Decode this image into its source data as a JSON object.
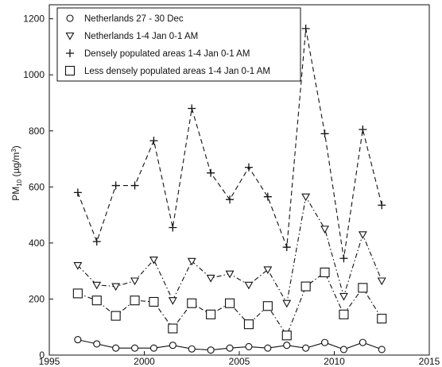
{
  "chart_data": {
    "type": "line",
    "xlabel": "",
    "ylabel": {
      "main": "PM",
      "sub": "10",
      "unit_pre": " (µg/m",
      "unit_sup": "3",
      "unit_post": ")"
    },
    "xlim": [
      1995,
      2015
    ],
    "ylim": [
      0,
      1250
    ],
    "xticks": [
      1995,
      2000,
      2005,
      2010,
      2015
    ],
    "yticks": [
      0,
      200,
      400,
      600,
      800,
      1000,
      1200
    ],
    "grid": false,
    "legend_position": "top-left",
    "series": [
      {
        "name": "Netherlands 27 - 30 Dec",
        "marker": "circle",
        "line_style": "solid",
        "x": [
          1996.5,
          1997.5,
          1998.5,
          1999.5,
          2000.5,
          2001.5,
          2002.5,
          2003.5,
          2004.5,
          2005.5,
          2006.5,
          2007.5,
          2008.5,
          2009.5,
          2010.5,
          2011.5,
          2012.5
        ],
        "y": [
          55,
          40,
          25,
          25,
          25,
          35,
          22,
          18,
          25,
          30,
          25,
          35,
          25,
          45,
          20,
          45,
          20
        ]
      },
      {
        "name": "Netherlands 1-4 Jan 0-1 AM",
        "marker": "triangle-down",
        "line_style": "dash-dot",
        "x": [
          1996.5,
          1997.5,
          1998.5,
          1999.5,
          2000.5,
          2001.5,
          2002.5,
          2003.5,
          2004.5,
          2005.5,
          2006.5,
          2007.5,
          2008.5,
          2009.5,
          2010.5,
          2011.5,
          2012.5
        ],
        "y": [
          320,
          250,
          245,
          265,
          340,
          195,
          335,
          275,
          290,
          250,
          305,
          185,
          565,
          450,
          210,
          430,
          265
        ]
      },
      {
        "name": "Densely populated areas 1-4 Jan 0-1 AM",
        "marker": "plus",
        "line_style": "dashed",
        "x": [
          1996.5,
          1997.5,
          1998.5,
          1999.5,
          2000.5,
          2001.5,
          2002.5,
          2003.5,
          2004.5,
          2005.5,
          2006.5,
          2007.5,
          2008.5,
          2009.5,
          2010.5,
          2011.5,
          2012.5
        ],
        "y": [
          580,
          405,
          605,
          605,
          765,
          455,
          880,
          650,
          555,
          670,
          565,
          385,
          1165,
          790,
          345,
          805,
          535
        ]
      },
      {
        "name": "Less densely populated areas 1-4 Jan 0-1 AM",
        "marker": "square",
        "line_style": "dash-dot",
        "x": [
          1996.5,
          1997.5,
          1998.5,
          1999.5,
          2000.5,
          2001.5,
          2002.5,
          2003.5,
          2004.5,
          2005.5,
          2006.5,
          2007.5,
          2008.5,
          2009.5,
          2010.5,
          2011.5,
          2012.5
        ],
        "y": [
          220,
          195,
          140,
          195,
          190,
          95,
          185,
          145,
          185,
          110,
          175,
          70,
          245,
          295,
          145,
          240,
          130
        ]
      }
    ]
  }
}
